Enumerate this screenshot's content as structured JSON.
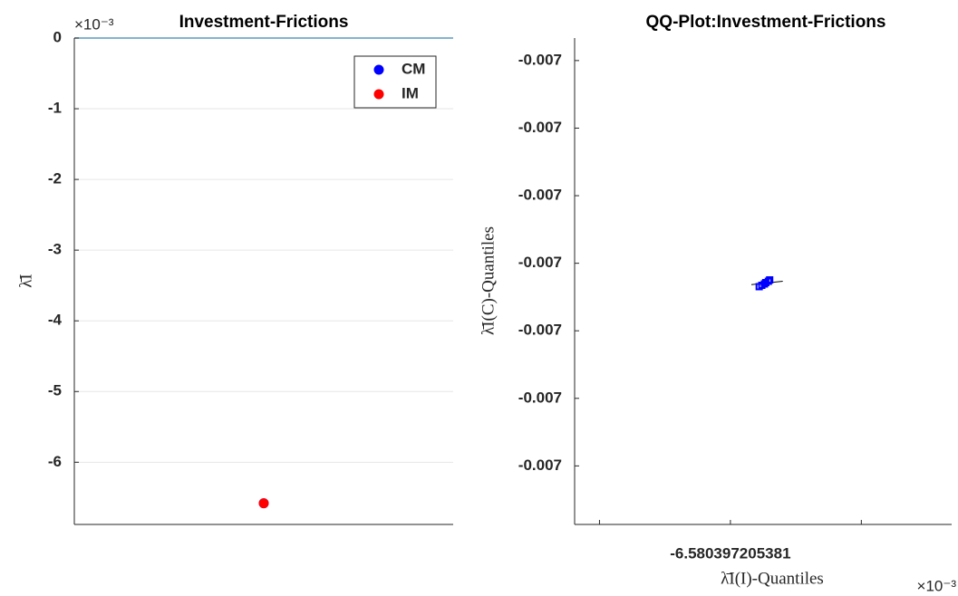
{
  "chart_data": [
    {
      "type": "scatter",
      "title": "Investment-Frictions",
      "ylabel": "λ̄I",
      "exponent": "×10⁻³",
      "x": [
        1
      ],
      "xlim": [
        0,
        2
      ],
      "series": [
        {
          "name": "CM",
          "color": "#0000ff",
          "values": [
            -6.58
          ]
        },
        {
          "name": "IM",
          "color": "#ff0000",
          "values": [
            -6.58
          ]
        }
      ],
      "ylim": [
        -6.88,
        0
      ],
      "yticks": [
        0,
        -1,
        -2,
        -3,
        -4,
        -5,
        -6
      ],
      "grid": true,
      "legend": "upper right"
    },
    {
      "type": "qq",
      "title": "QQ-Plot:Investment-Frictions",
      "xlabel": "λ̄I(I)-Quantiles",
      "ylabel": "λ̄I(C)-Quantiles",
      "exponent": "×10⁻³",
      "xlim": [
        -6.5803972053929,
        -6.5803972053641
      ],
      "xticks": [
        {
          "value": -6.580397205391,
          "label": null
        },
        -6.580397205381,
        {
          "value": -6.580397205371,
          "label": null
        }
      ],
      "ylim": [
        -0.0065803972053926,
        -0.006580397205371
      ],
      "yticks": [
        {
          "value": -0.006580397205372,
          "label": "-0.007"
        },
        {
          "value": -0.006580397205375,
          "label": "-0.007"
        },
        {
          "value": -0.006580397205378,
          "label": "-0.007"
        },
        {
          "value": -0.006580397205381,
          "label": "-0.007"
        },
        {
          "value": -0.006580397205384,
          "label": "-0.007"
        },
        {
          "value": -0.006580397205387,
          "label": "-0.007"
        },
        {
          "value": -0.00658039720539,
          "label": "-0.007"
        }
      ],
      "series": [
        {
          "color": "#0000ff",
          "x": [
            -6.5803972053788,
            -6.5803972053786,
            -6.5803972053784,
            -6.5803972053783,
            -6.5803972053781,
            -6.580397205378
          ],
          "values": [
            -0.00658039720538204,
            -0.00658039720538198,
            -0.00658039720538192,
            -0.00658039720538186,
            -0.0065803972053818,
            -0.00658039720538174
          ]
        }
      ],
      "reference_line": {
        "color": "#000000",
        "x": [
          -6.5803972053794,
          -6.580397205377
        ],
        "values": [
          -0.00658039720538195,
          -0.0065803972053818
        ]
      }
    }
  ]
}
